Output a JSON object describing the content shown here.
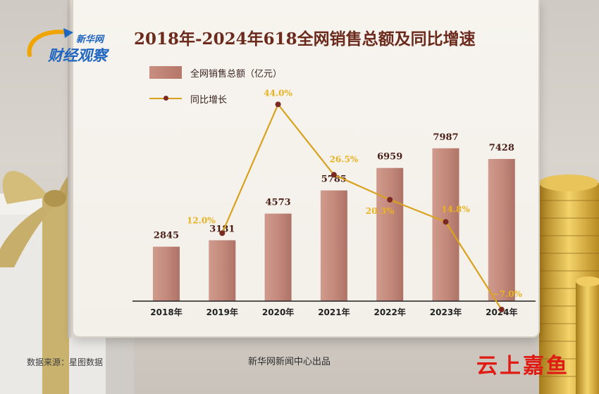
{
  "logo": {
    "line1": "新华网",
    "line2": "财经观察"
  },
  "chart_data": {
    "type": "bar",
    "title": "2018年-2024年618全网销售总额及同比增速",
    "categories": [
      "2018年",
      "2019年",
      "2020年",
      "2021年",
      "2022年",
      "2023年",
      "2024年"
    ],
    "series": [
      {
        "name": "全网销售总额（亿元）",
        "type": "bar",
        "values": [
          2845,
          3181,
          4573,
          5785,
          6959,
          7987,
          7428
        ]
      },
      {
        "name": "同比增长",
        "type": "line",
        "values": [
          null,
          12.0,
          44.0,
          26.5,
          20.3,
          14.8,
          -7.0
        ]
      }
    ],
    "bar_labels": [
      "2845",
      "3181",
      "4573",
      "5785",
      "6959",
      "7987",
      "7428"
    ],
    "line_labels": [
      "",
      "12.0%",
      "44.0%",
      "26.5%",
      "20.3%",
      "14.8%",
      "−7.0%"
    ],
    "colors": {
      "bar": "#c48a7c",
      "line": "#d9a21e",
      "point": "#7a2a22",
      "line_label": "#e8b321",
      "bar_label": "#4a1f17"
    }
  },
  "footer": {
    "source": "数据来源：星图数据",
    "credit": "新华网新闻中心出品",
    "brand": "云上嘉鱼"
  }
}
